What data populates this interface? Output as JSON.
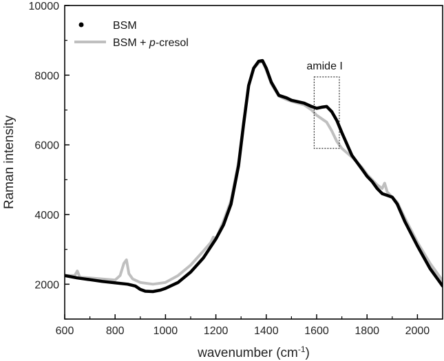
{
  "chart_data": {
    "type": "line",
    "xlabel": "wavenumber (cm",
    "xlabel_sup": "-1",
    "xlabel_suffix": ")",
    "ylabel": "Raman intensity",
    "xlim": [
      600,
      2100
    ],
    "ylim": [
      1000,
      10000
    ],
    "x_ticks": [
      600,
      800,
      1000,
      1200,
      1400,
      1600,
      1800,
      2000
    ],
    "y_ticks": [
      2000,
      4000,
      6000,
      8000,
      10000
    ],
    "grid": false,
    "legend_position": "top-left",
    "series": [
      {
        "name": "BSM",
        "color": "#000000",
        "x": [
          600,
          650,
          700,
          750,
          800,
          850,
          880,
          900,
          920,
          950,
          980,
          1000,
          1050,
          1100,
          1150,
          1200,
          1230,
          1260,
          1290,
          1310,
          1330,
          1350,
          1370,
          1385,
          1400,
          1420,
          1450,
          1480,
          1500,
          1550,
          1580,
          1600,
          1620,
          1640,
          1660,
          1680,
          1700,
          1740,
          1780,
          1800,
          1820,
          1840,
          1860,
          1880,
          1900,
          1920,
          1950,
          2000,
          2050,
          2100
        ],
        "y": [
          2250,
          2180,
          2130,
          2080,
          2040,
          2000,
          1950,
          1850,
          1800,
          1790,
          1830,
          1880,
          2050,
          2350,
          2750,
          3300,
          3700,
          4300,
          5400,
          6600,
          7700,
          8200,
          8400,
          8420,
          8200,
          7800,
          7420,
          7350,
          7280,
          7200,
          7100,
          7050,
          7080,
          7100,
          6950,
          6700,
          6350,
          5700,
          5300,
          5100,
          4950,
          4750,
          4600,
          4550,
          4500,
          4300,
          3800,
          3100,
          2450,
          1950
        ]
      },
      {
        "name": "BSM + p-cresol",
        "name_parts": [
          "BSM + ",
          "p",
          "-cresol"
        ],
        "color": "#bfbfbf",
        "x": [
          600,
          640,
          650,
          660,
          700,
          750,
          800,
          820,
          835,
          845,
          855,
          870,
          900,
          950,
          1000,
          1050,
          1100,
          1150,
          1180,
          1190,
          1200,
          1215,
          1230,
          1260,
          1290,
          1310,
          1330,
          1350,
          1370,
          1385,
          1400,
          1420,
          1450,
          1480,
          1500,
          1550,
          1580,
          1600,
          1620,
          1640,
          1660,
          1680,
          1700,
          1740,
          1780,
          1800,
          1820,
          1840,
          1860,
          1870,
          1880,
          1900,
          1920,
          1950,
          2000,
          2050,
          2100
        ],
        "y": [
          2250,
          2250,
          2380,
          2200,
          2180,
          2150,
          2120,
          2250,
          2600,
          2700,
          2300,
          2150,
          2050,
          2000,
          2050,
          2250,
          2550,
          2950,
          3200,
          3350,
          3300,
          3550,
          3800,
          4400,
          5500,
          6650,
          7700,
          8200,
          8350,
          8400,
          8150,
          7750,
          7400,
          7300,
          7250,
          7150,
          7000,
          6850,
          6750,
          6650,
          6400,
          6100,
          5900,
          5650,
          5350,
          5150,
          5000,
          4850,
          4750,
          4900,
          4650,
          4500,
          4350,
          3900,
          3200,
          2600,
          2100
        ]
      }
    ],
    "annotations": [
      {
        "text": "amide I",
        "box_x": [
          1590,
          1690
        ],
        "box_y": [
          5900,
          7950
        ]
      }
    ]
  }
}
